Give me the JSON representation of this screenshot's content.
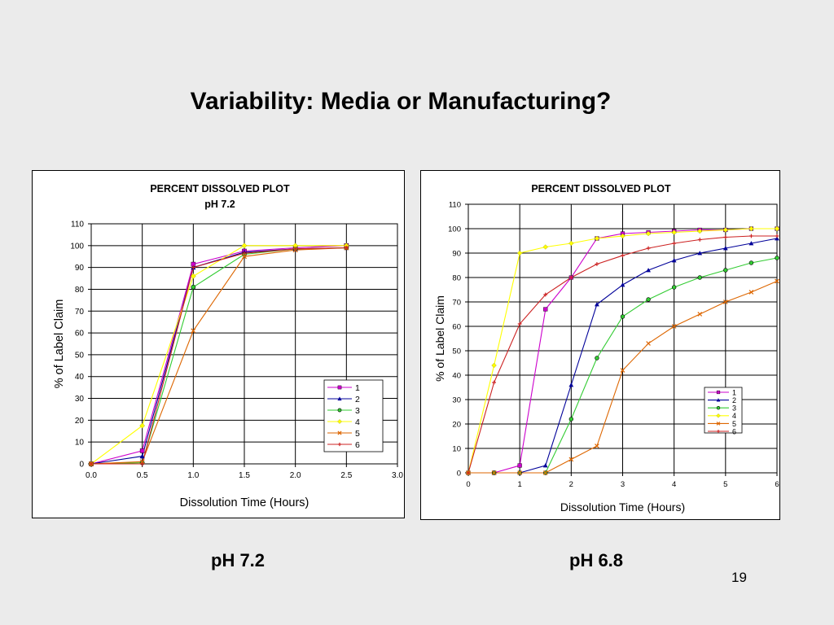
{
  "slide": {
    "title": "Variability: Media or Manufacturing?",
    "caption_left": "pH 7.2",
    "caption_right": "pH 6.8",
    "page_number": "19"
  },
  "chart_data": [
    {
      "type": "line",
      "title": "PERCENT DISSOLVED PLOT",
      "subtitle": "pH 7.2",
      "xlabel": "Dissolution Time (Hours)",
      "ylabel": "% of Label Claim",
      "xlim": [
        0,
        3.0
      ],
      "ylim": [
        0,
        110
      ],
      "xticks": [
        "0.0",
        "0.5",
        "1.0",
        "1.5",
        "2.0",
        "2.5",
        "3.0"
      ],
      "yticks": [
        "0",
        "10",
        "20",
        "30",
        "40",
        "50",
        "60",
        "70",
        "80",
        "90",
        "100",
        "110"
      ],
      "grid": true,
      "legend": "bottom-right",
      "x": [
        0,
        0.5,
        1.0,
        1.5,
        2.0,
        2.5
      ],
      "series": [
        {
          "name": "1",
          "color": "#cc00cc",
          "marker": "square",
          "values": [
            0,
            6,
            91.5,
            97.5,
            99,
            100
          ]
        },
        {
          "name": "2",
          "color": "#000099",
          "marker": "triangle",
          "values": [
            0,
            3.5,
            90,
            97,
            98.5,
            99
          ]
        },
        {
          "name": "3",
          "color": "#33cc33",
          "marker": "circle",
          "values": [
            0,
            0.5,
            81,
            96,
            98.5,
            99
          ]
        },
        {
          "name": "4",
          "color": "#ffff00",
          "marker": "diamond",
          "values": [
            0,
            17.5,
            86,
            100,
            100,
            100
          ]
        },
        {
          "name": "5",
          "color": "#dd6600",
          "marker": "x",
          "values": [
            0,
            1,
            61,
            95,
            98,
            99
          ]
        },
        {
          "name": "6",
          "color": "#cc2222",
          "marker": "plus",
          "values": [
            0,
            0,
            90,
            96.5,
            98.5,
            99
          ]
        }
      ]
    },
    {
      "type": "line",
      "title": "PERCENT DISSOLVED PLOT",
      "xlabel": "Dissolution Time (Hours)",
      "ylabel": "% of Label Claim",
      "xlim": [
        0,
        6
      ],
      "ylim": [
        0,
        110
      ],
      "xticks": [
        "0",
        "1",
        "2",
        "3",
        "4",
        "5",
        "6"
      ],
      "yticks": [
        "0",
        "10",
        "20",
        "30",
        "40",
        "50",
        "60",
        "70",
        "80",
        "90",
        "100",
        "110"
      ],
      "grid": true,
      "legend": "bottom-right",
      "x": [
        0,
        0.5,
        1.0,
        1.5,
        2.0,
        2.5,
        3.0,
        3.5,
        4.0,
        4.5,
        5.0,
        5.5,
        6.0
      ],
      "series": [
        {
          "name": "1",
          "color": "#cc00cc",
          "marker": "square",
          "values": [
            0,
            0,
            3,
            67,
            80,
            96,
            98,
            98.5,
            99,
            99.5,
            99.5,
            100,
            100
          ]
        },
        {
          "name": "2",
          "color": "#000099",
          "marker": "triangle",
          "values": [
            0,
            0,
            0,
            3,
            36,
            69,
            77,
            83,
            87,
            90,
            92,
            94,
            96
          ]
        },
        {
          "name": "3",
          "color": "#33cc33",
          "marker": "circle",
          "values": [
            0,
            0,
            0,
            0,
            22,
            47,
            64,
            71,
            76,
            80,
            83,
            86,
            88
          ]
        },
        {
          "name": "4",
          "color": "#ffff00",
          "marker": "diamond",
          "values": [
            0,
            44,
            90,
            92.5,
            94,
            96,
            97,
            98,
            98.5,
            99,
            99.5,
            100,
            100
          ]
        },
        {
          "name": "5",
          "color": "#dd6600",
          "marker": "x",
          "values": [
            0,
            0,
            0,
            0,
            5.5,
            11,
            42,
            53,
            60,
            65,
            70,
            74,
            78.5
          ]
        },
        {
          "name": "6",
          "color": "#cc2222",
          "marker": "plus",
          "values": [
            0,
            37,
            61,
            73,
            80,
            85.5,
            89,
            92,
            94,
            95.5,
            96.5,
            97,
            97
          ]
        }
      ]
    }
  ]
}
